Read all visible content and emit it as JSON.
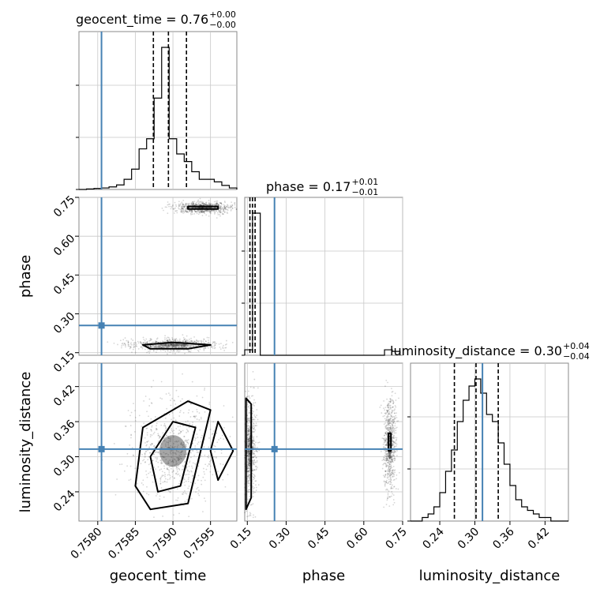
{
  "chart_data": {
    "type": "corner",
    "parameters": [
      "geocent_time",
      "phase",
      "luminosity_distance"
    ],
    "truths": {
      "geocent_time": 0.75805,
      "phase": 0.255,
      "luminosity_distance": 0.313
    },
    "ranges": {
      "geocent_time": [
        0.75775,
        0.75985
      ],
      "phase": [
        0.14,
        0.75
      ],
      "luminosity_distance": [
        0.19,
        0.46
      ]
    },
    "ticks": {
      "geocent_time": [
        "0.7580",
        "0.7585",
        "0.7590",
        "0.7595"
      ],
      "phase": [
        "0.15",
        "0.30",
        "0.45",
        "0.60",
        "0.75"
      ],
      "luminosity_distance": [
        "0.24",
        "0.30",
        "0.36",
        "0.42"
      ]
    },
    "titles": [
      {
        "param": "geocent_time",
        "label": "geocent_time = 0.76",
        "plus": "+0.00",
        "minus": "−0.00"
      },
      {
        "param": "phase",
        "label": "phase = 0.17",
        "plus": "+0.01",
        "minus": "−0.01"
      },
      {
        "param": "luminosity_distance",
        "label": "luminosity_distance = 0.30",
        "plus": "+0.04",
        "minus": "−0.04"
      }
    ],
    "quantiles": {
      "geocent_time": [
        0.75874,
        0.75894,
        0.75918
      ],
      "phase": [
        0.16,
        0.17,
        0.18
      ],
      "luminosity_distance": [
        0.265,
        0.302,
        0.34
      ]
    },
    "histograms": {
      "geocent_time": {
        "edges": [
          0.75775,
          0.75785,
          0.75795,
          0.75805,
          0.75815,
          0.75825,
          0.75835,
          0.75845,
          0.75855,
          0.75865,
          0.75875,
          0.75885,
          0.75895,
          0.75905,
          0.75915,
          0.75925,
          0.75935,
          0.75945,
          0.75955,
          0.75965,
          0.75975,
          0.75985
        ],
        "counts": [
          0,
          1,
          2,
          3,
          5,
          9,
          20,
          40,
          80,
          100,
          180,
          280,
          100,
          70,
          55,
          35,
          20,
          20,
          15,
          8,
          3
        ]
      },
      "phase": {
        "edges": [
          0.14,
          0.17,
          0.2,
          0.23,
          0.26,
          0.29,
          0.32,
          0.35,
          0.38,
          0.41,
          0.44,
          0.47,
          0.5,
          0.53,
          0.56,
          0.59,
          0.62,
          0.65,
          0.68,
          0.71,
          0.74
        ],
        "counts": [
          10,
          260,
          0,
          0,
          0,
          0,
          0,
          0,
          0,
          0,
          0,
          0,
          0,
          0,
          0,
          0,
          0,
          0,
          10,
          7
        ]
      },
      "luminosity_distance": {
        "edges": [
          0.19,
          0.2,
          0.21,
          0.22,
          0.23,
          0.24,
          0.25,
          0.26,
          0.27,
          0.28,
          0.29,
          0.3,
          0.31,
          0.32,
          0.33,
          0.34,
          0.35,
          0.36,
          0.37,
          0.38,
          0.39,
          0.4,
          0.41,
          0.42,
          0.43,
          0.44,
          0.45,
          0.46
        ],
        "counts": [
          0,
          0,
          1,
          2,
          4,
          8,
          14,
          20,
          28,
          34,
          38,
          40,
          36,
          30,
          28,
          22,
          16,
          10,
          6,
          4,
          3,
          2,
          1,
          1,
          0,
          0,
          0
        ]
      }
    },
    "sample_clusters": [
      {
        "x": "geocent_time",
        "y": "phase",
        "cx": 0.7594,
        "cy": 0.71,
        "sx": 0.0002,
        "sy": 0.012
      },
      {
        "x": "geocent_time",
        "y": "phase",
        "cx": 0.759,
        "cy": 0.18,
        "sx": 0.0003,
        "sy": 0.012
      },
      {
        "x": "geocent_time",
        "y": "luminosity_distance",
        "cx": 0.759,
        "cy": 0.31,
        "sx": 0.0003,
        "sy": 0.045
      },
      {
        "x": "phase",
        "y": "luminosity_distance",
        "cx": 0.16,
        "cy": 0.31,
        "sx": 0.012,
        "sy": 0.045
      },
      {
        "x": "phase",
        "y": "luminosity_distance",
        "cx": 0.7,
        "cy": 0.32,
        "sx": 0.012,
        "sy": 0.04
      }
    ],
    "contours": [
      {
        "x": "geocent_time",
        "y": "phase",
        "points": [
          [
            0.7587,
            0.165
          ],
          [
            0.7592,
            0.165
          ],
          [
            0.7595,
            0.18
          ],
          [
            0.759,
            0.19
          ],
          [
            0.7586,
            0.18
          ]
        ]
      },
      {
        "x": "geocent_time",
        "y": "phase",
        "points": [
          [
            0.7592,
            0.705
          ],
          [
            0.7596,
            0.705
          ],
          [
            0.7596,
            0.715
          ],
          [
            0.7592,
            0.715
          ]
        ]
      },
      {
        "x": "geocent_time",
        "y": "luminosity_distance",
        "points": [
          [
            0.7587,
            0.21
          ],
          [
            0.7592,
            0.22
          ],
          [
            0.7595,
            0.38
          ],
          [
            0.7592,
            0.395
          ],
          [
            0.7586,
            0.35
          ],
          [
            0.7585,
            0.25
          ]
        ]
      },
      {
        "x": "geocent_time",
        "y": "luminosity_distance",
        "points": [
          [
            0.7588,
            0.24
          ],
          [
            0.7591,
            0.25
          ],
          [
            0.7593,
            0.35
          ],
          [
            0.759,
            0.36
          ],
          [
            0.7587,
            0.3
          ]
        ]
      },
      {
        "x": "geocent_time",
        "y": "luminosity_distance",
        "points": [
          [
            0.7596,
            0.26
          ],
          [
            0.7598,
            0.31
          ],
          [
            0.7596,
            0.36
          ],
          [
            0.7595,
            0.31
          ]
        ]
      },
      {
        "x": "phase",
        "y": "luminosity_distance",
        "points": [
          [
            0.145,
            0.21
          ],
          [
            0.165,
            0.23
          ],
          [
            0.165,
            0.39
          ],
          [
            0.145,
            0.4
          ]
        ]
      },
      {
        "x": "phase",
        "y": "luminosity_distance",
        "points": [
          [
            0.695,
            0.31
          ],
          [
            0.705,
            0.31
          ],
          [
            0.705,
            0.34
          ],
          [
            0.695,
            0.34
          ]
        ]
      }
    ]
  }
}
